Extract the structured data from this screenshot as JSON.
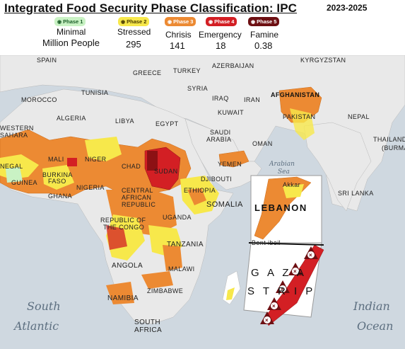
{
  "header": {
    "title": "Integrated Food Security Phase Classification: IPC",
    "years": "2023-2025",
    "million_people_label": "Million People"
  },
  "phases": [
    {
      "badge": "Phase 1",
      "category": "Minimal",
      "value": "",
      "color": "#c9f2c4",
      "text_color": "#1d5f2a"
    },
    {
      "badge": "Phase 2",
      "category": "Stressed",
      "value": "295",
      "color": "#f7e84b",
      "text_color": "#4a3b00"
    },
    {
      "badge": "Phase 3",
      "category": "Chrisis",
      "value": "141",
      "color": "#ec8a33",
      "text_color": "#ffffff"
    },
    {
      "badge": "Phase 4",
      "category": "Emergency",
      "value": "18",
      "color": "#d31f24",
      "text_color": "#ffffff"
    },
    {
      "badge": "Phase 5",
      "category": "Famine",
      "value": "0.38",
      "color": "#6d0f12",
      "text_color": "#ffffff"
    }
  ],
  "map": {
    "countries": {
      "spain": "SPAIN",
      "greece": "GREECE",
      "turkey": "TURKEY",
      "azerbaijan": "AZERBAIJAN",
      "kyrgyzstan": "KYRGYZSTAN",
      "tunisia": "TUNISIA",
      "syria": "SYRIA",
      "morocco": "MOROCCO",
      "iraq": "IRAQ",
      "iran": "IRAN",
      "afghanistan": "AFGHANISTAN",
      "algeria": "ALGERIA",
      "libya": "LIBYA",
      "egypt": "EGYPT",
      "kuwait": "KUWAIT",
      "pakistan": "PAKISTAN",
      "nepal": "NEPAL",
      "western_sahara": "WESTERN",
      "sahara": "SAHARA",
      "saudi": "SAUDI",
      "arabia": "ARABIA",
      "thailand": "THAILAND",
      "burma": "(BURMA",
      "oman": "OMAN",
      "mali": "MALI",
      "niger": "NIGER",
      "senegal": "NEGAL",
      "chad": "CHAD",
      "sudan": "SUDAN",
      "yemen": "YEMEN",
      "burkina": "BURKINA",
      "faso": "FASO",
      "djibouti": "DJIBOUTI",
      "guinea": "GUINEA",
      "nigeria": "NIGERIA",
      "ethiopia": "ETHIOPIA",
      "sri_lanka": "SRI LANKA",
      "ghana": "GHANA",
      "central": "CENTRAL",
      "african": "AFRICAN",
      "republic": "REPUBLIC",
      "somalia": "SOMALIA",
      "uganda": "UGANDA",
      "rep_of": "REPUBLIC OF",
      "the_congo": "THE CONGO",
      "tanzania": "TANZANIA",
      "angola": "ANGOLA",
      "malawi": "MALAWI",
      "zimbabwe": "ZIMBABWE",
      "namibia": "NAMIBIA",
      "south": "SOUTH",
      "africa": "AFRICA"
    },
    "seas": {
      "arabian": "Arabian",
      "sea": "Sea",
      "south": "South",
      "atlantic": "Atlantic",
      "indian": "Indian",
      "ocean": "Ocean"
    },
    "insets": {
      "lebanon_title": "LEBANON",
      "lebanon_town_1": "Akkar",
      "lebanon_town_2": "Bent ibeil",
      "gaza_title_1": "G A Z A",
      "gaza_title_2": "S T R I P",
      "famine_markers": 5
    },
    "colors": {
      "ocean": "#cfd8e0",
      "land": "#e9e9e9",
      "phase1": "#c9f2c4",
      "phase2": "#f7e84b",
      "phase3": "#ec8a33",
      "phase4": "#d31f24",
      "phase5": "#6d0f12"
    }
  }
}
